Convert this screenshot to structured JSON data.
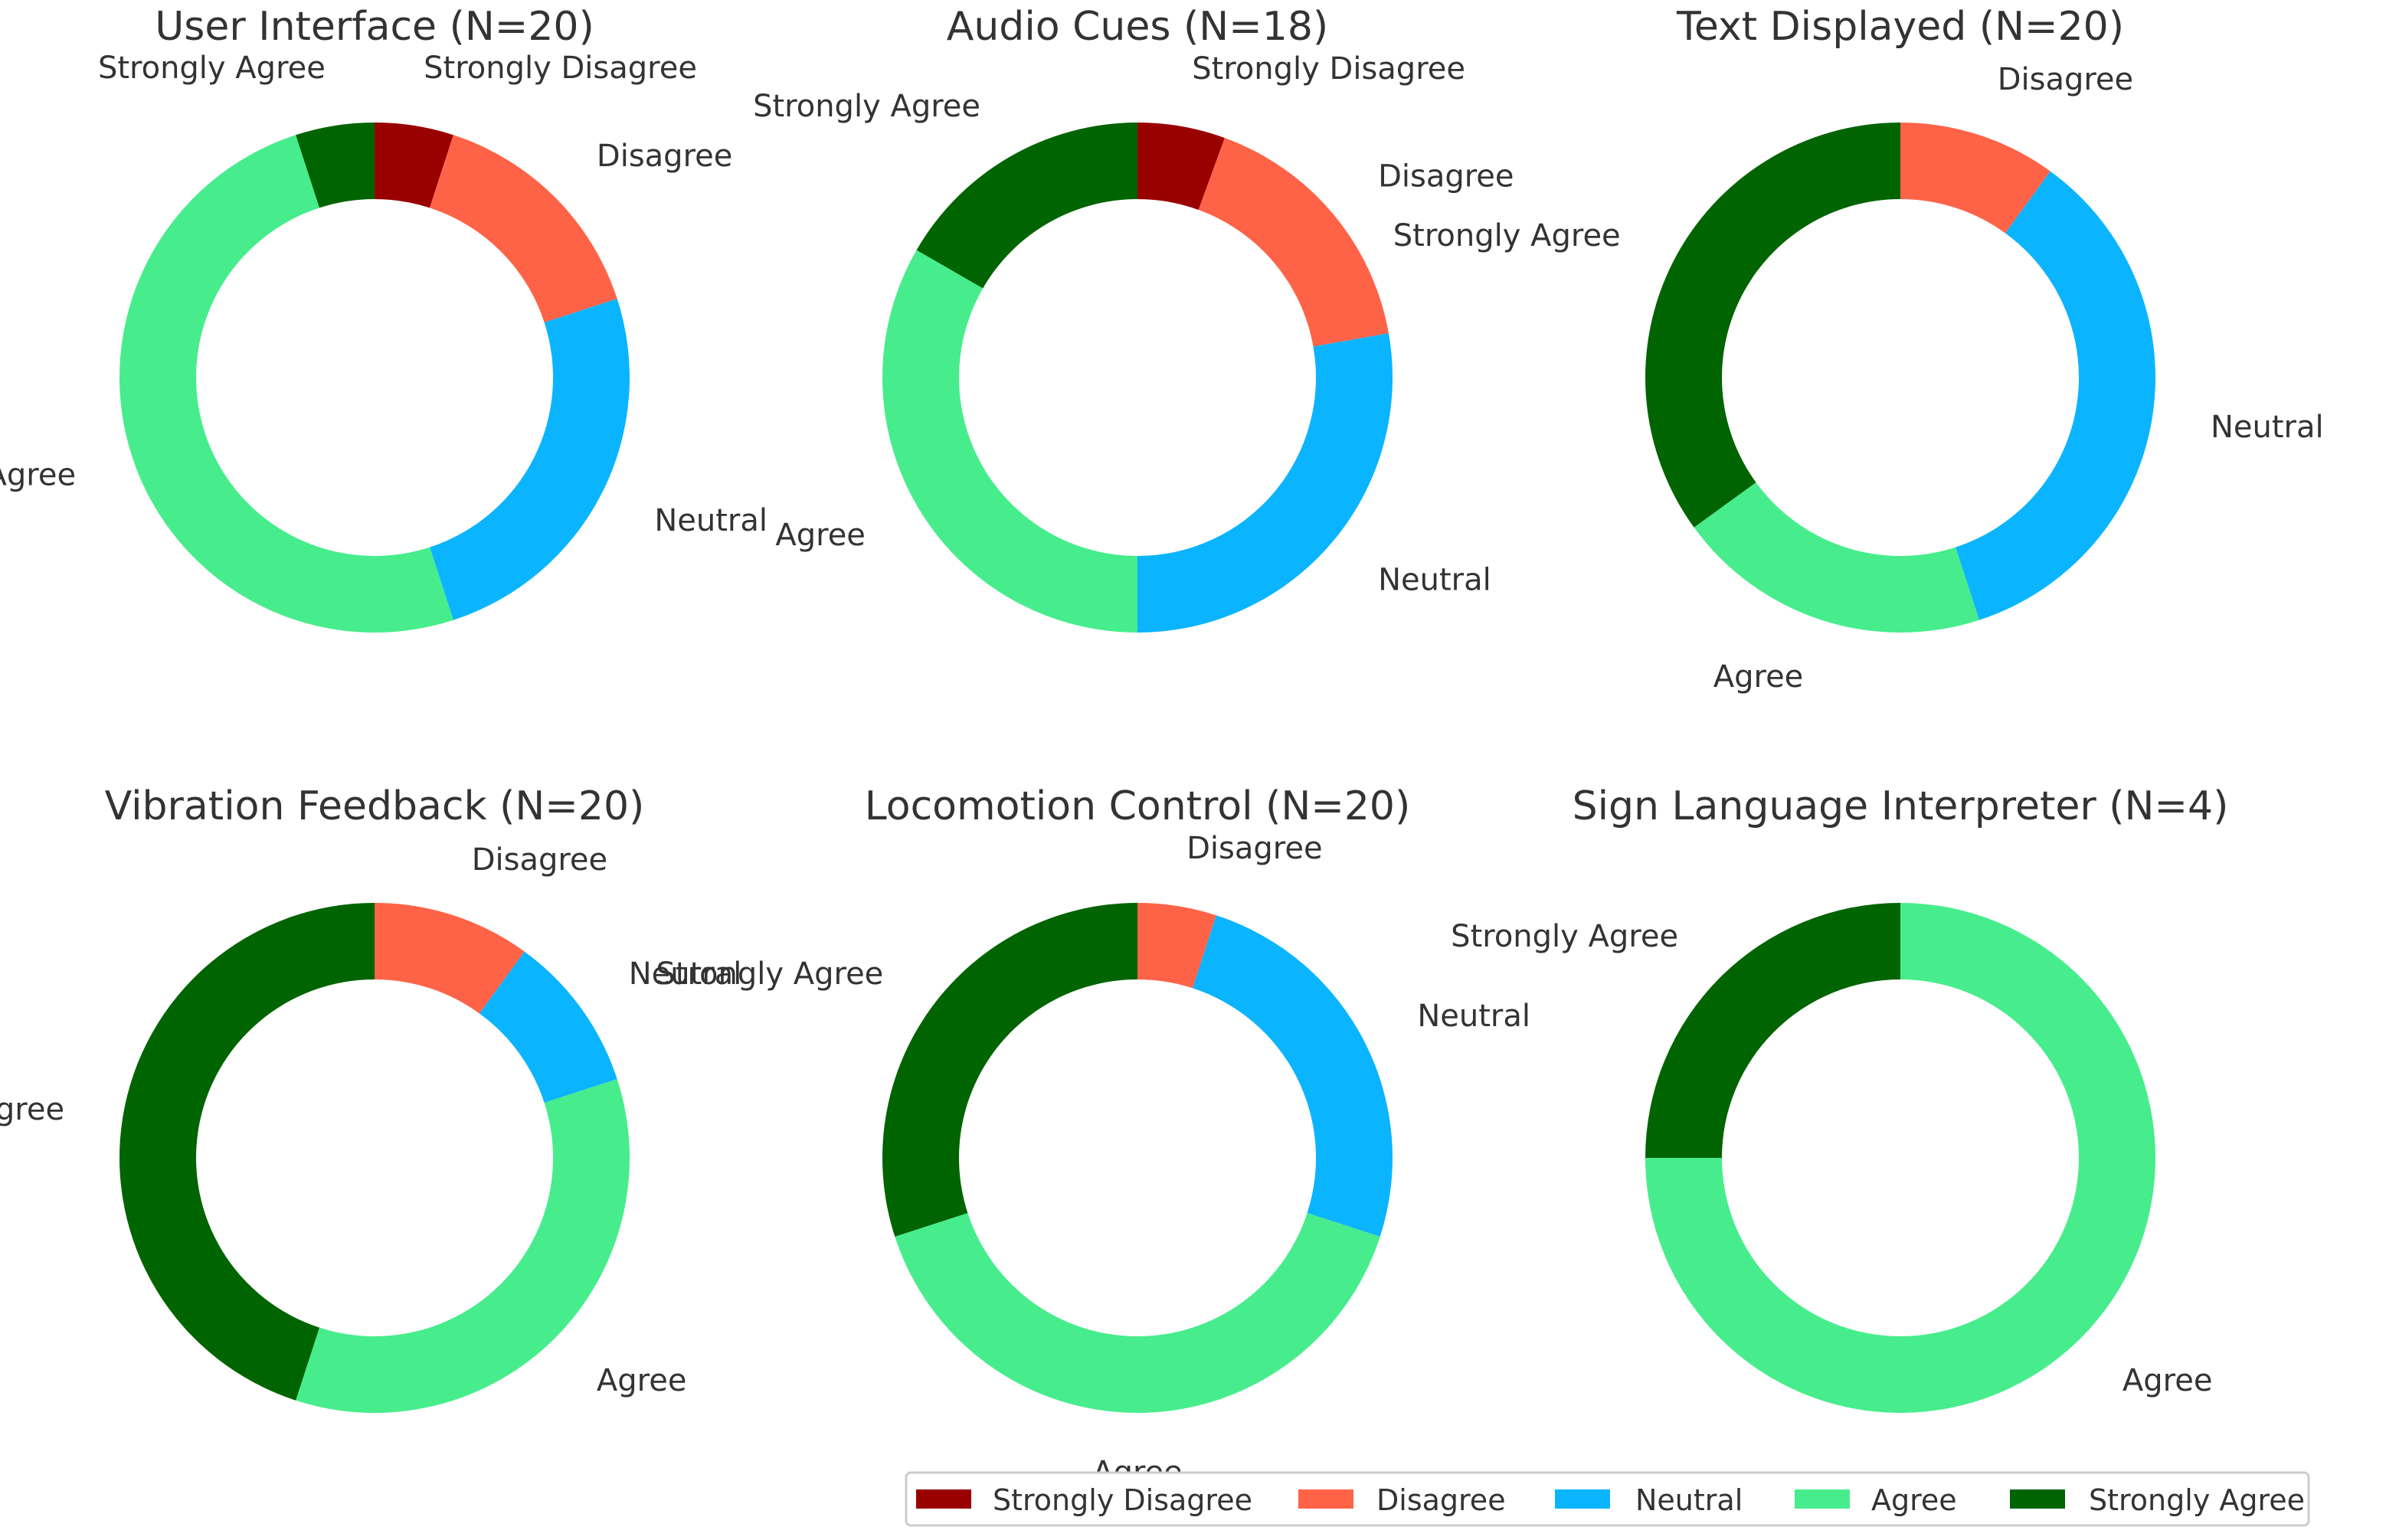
{
  "colors": {
    "Strongly Disagree": "#990000",
    "Disagree": "#ff6347",
    "Neutral": "#0bb4ff",
    "Agree": "#47ed8c",
    "Strongly Agree": "#006400"
  },
  "legend": {
    "items": [
      "Strongly Disagree",
      "Disagree",
      "Neutral",
      "Agree",
      "Strongly Agree"
    ]
  },
  "chart_data": [
    {
      "type": "pie",
      "variant": "donut",
      "title": "User Interface (N=20)",
      "categories": [
        "Strongly Disagree",
        "Disagree",
        "Neutral",
        "Agree",
        "Strongly Agree"
      ],
      "values": [
        1,
        3,
        5,
        10,
        1
      ],
      "labels": [
        "Strongly Disagree",
        "Disagree",
        "Neutral",
        "Agree",
        "Strongly Agree"
      ]
    },
    {
      "type": "pie",
      "variant": "donut",
      "title": "Audio Cues (N=18)",
      "categories": [
        "Strongly Disagree",
        "Disagree",
        "Neutral",
        "Agree",
        "Strongly Agree"
      ],
      "values": [
        1,
        3,
        5,
        6,
        3
      ],
      "labels": [
        "Strongly Disagree",
        "Disagree",
        "Neutral",
        "Agree",
        "Strongly Agree"
      ]
    },
    {
      "type": "pie",
      "variant": "donut",
      "title": "Text Displayed (N=20)",
      "categories": [
        "Disagree",
        "Neutral",
        "Agree",
        "Strongly Agree"
      ],
      "values": [
        2,
        7,
        4,
        7
      ],
      "labels": [
        "Disagree",
        "Neutral",
        "Agree",
        "Strongly Agree"
      ]
    },
    {
      "type": "pie",
      "variant": "donut",
      "title": "Vibration Feedback (N=20)",
      "categories": [
        "Disagree",
        "Neutral",
        "Agree",
        "Strongly Agree"
      ],
      "values": [
        2,
        2,
        7,
        9
      ],
      "labels": [
        "Disagree",
        "Neutral",
        "Agree",
        "Strongly Agree"
      ]
    },
    {
      "type": "pie",
      "variant": "donut",
      "title": "Locomotion Control (N=20)",
      "categories": [
        "Disagree",
        "Neutral",
        "Agree",
        "Strongly Agree"
      ],
      "values": [
        1,
        5,
        8,
        6
      ],
      "labels": [
        "Disagree",
        "Neutral",
        "Agree",
        "Strongly Agree"
      ]
    },
    {
      "type": "pie",
      "variant": "donut",
      "title": "Sign Language Interpreter (N=4)",
      "categories": [
        "Agree",
        "Strongly Agree"
      ],
      "values": [
        3,
        1
      ],
      "labels": [
        "Agree",
        "Strongly Agree"
      ]
    }
  ]
}
